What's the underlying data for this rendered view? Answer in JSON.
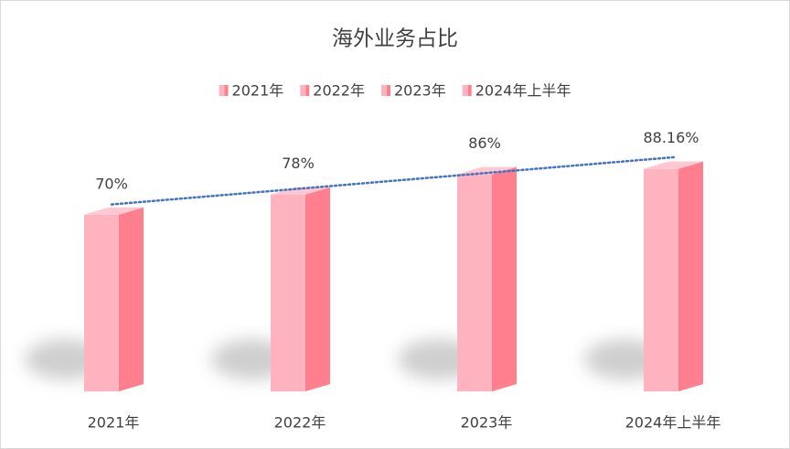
{
  "chart_data": {
    "type": "bar3d",
    "title": "海外业务占比",
    "categories": [
      "2021年",
      "2022年",
      "2023年",
      "2024年上半年"
    ],
    "values": [
      70,
      78,
      86,
      88.16
    ],
    "value_labels": [
      "70%",
      "78%",
      "86%",
      "88.16%"
    ],
    "color": "#ffb3be",
    "side_color": "#ff7f8e",
    "top_color": "#ffc7cf",
    "ylim": [
      0,
      100
    ],
    "trendline": true,
    "trendline_color": "#4472c4",
    "legend": "top"
  }
}
